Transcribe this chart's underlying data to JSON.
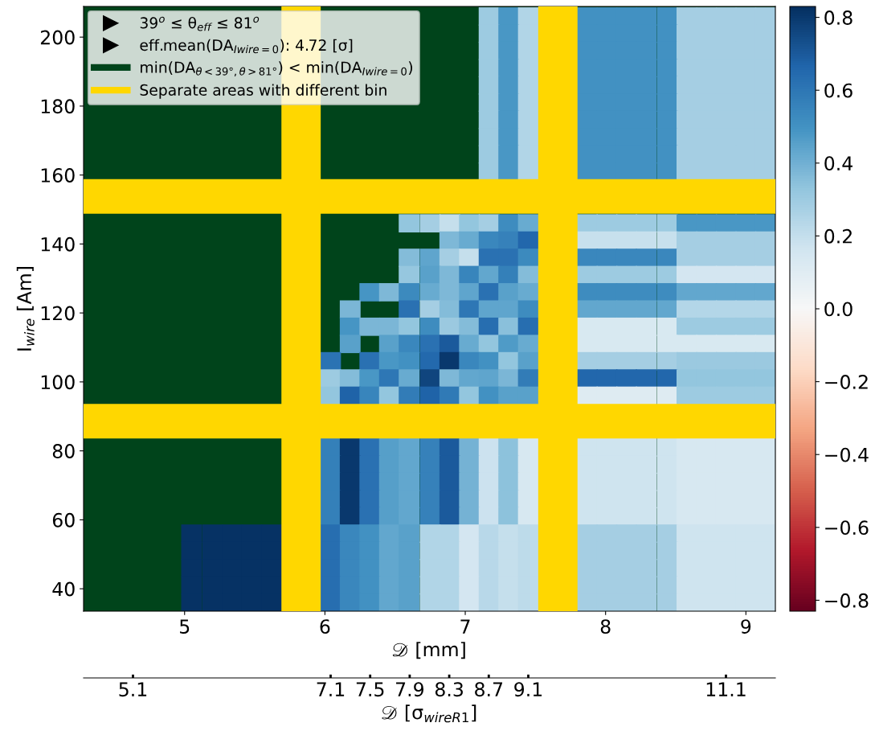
{
  "chart_data": {
    "type": "scatter",
    "marker": "square",
    "xlabel": "𝒟 [mm]",
    "ylabel": "I$_{wire}$ [Am]",
    "x2label": "𝒟 [σ$_{wireR1}$]",
    "xlim": [
      4.28,
      9.21
    ],
    "xticks": [
      5,
      6,
      7,
      8,
      9
    ],
    "ylim": [
      33.5,
      208.9
    ],
    "yticks": [
      40,
      60,
      80,
      100,
      120,
      140,
      160,
      180,
      200
    ],
    "x2lim": [
      4.6,
      11.6
    ],
    "x2ticks": [
      5.1,
      7.1,
      7.5,
      7.9,
      8.3,
      8.7,
      9.1,
      11.1
    ],
    "clim": [
      -0.83,
      0.83
    ],
    "cticks": [
      {
        "value": -0.8,
        "label": "−0.8"
      },
      {
        "value": -0.6,
        "label": "−0.6"
      },
      {
        "value": -0.4,
        "label": "−0.4"
      },
      {
        "value": -0.2,
        "label": "−0.2"
      },
      {
        "value": 0,
        "label": "0.0"
      },
      0.2,
      0.4,
      0.6,
      0.8
    ],
    "x": [
      7.17,
      7.31,
      7.45,
      7.87,
      8.01,
      8.15,
      8.29,
      8.44,
      8.58,
      8.72,
      8.86,
      9.0,
      9.14,
      7.17,
      7.31,
      7.45,
      7.87,
      8.01,
      8.15,
      8.29,
      8.44,
      8.58,
      8.72,
      8.86,
      9.0,
      9.14,
      7.17,
      7.31,
      7.45,
      7.87,
      8.01,
      8.15,
      8.29,
      8.44,
      8.58,
      8.72,
      8.86,
      9.0,
      9.14,
      7.17,
      7.31,
      7.45,
      7.87,
      8.01,
      8.15,
      8.29,
      8.44,
      8.58,
      8.72,
      8.86,
      9.0,
      9.14,
      7.17,
      7.31,
      7.45,
      7.87,
      8.01,
      8.15,
      8.29,
      8.44,
      8.58,
      8.72,
      8.86,
      9.0,
      9.14,
      7.17,
      7.31,
      7.45,
      7.87,
      8.01,
      8.15,
      8.29,
      8.44,
      8.58,
      8.72,
      8.86,
      9.0,
      9.14,
      7.17,
      7.31,
      7.45,
      7.87,
      8.01,
      8.15,
      8.29,
      8.44,
      8.58,
      8.72,
      8.86,
      9.0,
      9.14,
      7.17,
      7.31,
      7.45,
      7.87,
      8.01,
      8.15,
      8.29,
      8.44,
      8.58,
      8.72,
      8.86,
      9.0,
      9.14,
      7.17,
      7.31,
      7.45,
      7.87,
      8.01,
      8.15,
      8.29,
      8.44,
      8.58,
      8.72,
      8.86,
      9.0,
      9.14,
      7.17,
      7.31,
      7.45,
      7.87,
      8.01,
      8.15,
      8.29,
      8.44,
      8.58,
      8.72,
      8.86,
      9.0,
      9.14,
      6.6,
      6.75,
      6.89,
      7.03,
      7.17,
      7.31,
      7.45,
      7.87,
      8.01,
      8.15,
      8.29,
      8.44,
      8.58,
      8.72,
      8.86,
      9.0,
      9.14,
      6.89,
      7.03,
      7.17,
      7.31,
      7.45,
      7.87,
      8.01,
      8.15,
      8.29,
      8.44,
      8.58,
      8.72,
      8.86,
      9.0,
      9.14,
      6.6,
      6.75,
      6.89,
      7.03,
      7.17,
      7.31,
      7.45,
      7.87,
      8.01,
      8.15,
      8.29,
      8.44,
      8.58,
      8.72,
      8.86,
      9.0,
      9.14,
      6.6,
      6.75,
      6.89,
      7.03,
      7.17,
      7.31,
      7.45,
      7.87,
      8.01,
      8.15,
      8.29,
      8.44,
      8.58,
      8.72,
      8.86,
      9.0,
      9.14,
      6.32,
      6.46,
      6.6,
      6.75,
      6.89,
      7.03,
      7.17,
      7.31,
      7.45,
      7.87,
      8.01,
      8.15,
      8.29,
      8.44,
      8.58,
      8.72,
      8.86,
      9.0,
      9.14,
      6.18,
      6.6,
      6.75,
      6.89,
      7.03,
      7.17,
      7.31,
      7.45,
      7.87,
      8.01,
      8.15,
      8.29,
      8.44,
      8.58,
      8.72,
      8.86,
      9.0,
      9.14,
      6.18,
      6.32,
      6.46,
      6.6,
      6.75,
      6.89,
      7.03,
      7.17,
      7.31,
      7.45,
      7.87,
      8.01,
      8.15,
      8.29,
      8.44,
      8.58,
      8.72,
      8.86,
      9.0,
      9.14,
      6.18,
      6.46,
      6.6,
      6.75,
      6.89,
      7.03,
      7.17,
      7.31,
      7.45,
      7.87,
      8.01,
      8.15,
      8.29,
      8.44,
      8.58,
      8.72,
      8.86,
      9.0,
      9.14,
      6.04,
      6.32,
      6.46,
      6.6,
      6.75,
      6.89,
      7.03,
      7.17,
      7.31,
      7.45,
      7.87,
      8.01,
      8.15,
      8.29,
      8.44,
      8.58,
      8.72,
      8.86,
      9.0,
      9.14,
      6.04,
      6.18,
      6.32,
      6.46,
      6.6,
      6.75,
      6.89,
      7.03,
      7.17,
      7.31,
      7.45,
      7.87,
      8.01,
      8.15,
      8.29,
      8.44,
      8.58,
      8.72,
      8.86,
      9.0,
      9.14,
      6.04,
      6.18,
      6.32,
      6.46,
      6.6,
      6.75,
      6.89,
      7.03,
      7.17,
      7.31,
      7.45,
      7.87,
      8.01,
      8.15,
      8.29,
      8.44,
      8.58,
      8.72,
      8.86,
      9.0,
      9.14,
      6.04,
      6.18,
      6.32,
      6.46,
      6.6,
      6.75,
      6.89,
      7.03,
      7.17,
      7.31,
      7.45,
      7.87,
      8.01,
      8.15,
      8.29,
      8.44,
      8.58,
      8.72,
      8.86,
      9.0,
      9.14,
      6.04,
      6.18,
      6.32,
      6.46,
      6.6,
      6.75,
      6.89,
      7.03,
      7.17,
      7.31,
      7.45,
      7.87,
      8.01,
      8.15,
      8.29,
      8.44,
      8.58,
      8.72,
      8.86,
      9.0,
      9.14,
      6.04,
      6.18,
      6.32,
      6.46,
      6.6,
      6.75,
      6.89,
      7.03,
      7.17,
      7.31,
      7.45,
      7.87,
      8.01,
      8.15,
      8.29,
      8.44,
      8.58,
      8.72,
      8.86,
      9.0,
      9.14,
      6.04,
      6.18,
      6.32,
      6.46,
      6.6,
      6.75,
      6.89,
      7.03,
      7.17,
      7.31,
      7.45,
      7.87,
      8.01,
      8.15,
      8.29,
      8.44,
      8.58,
      8.72,
      8.86,
      9.0,
      9.14,
      6.04,
      6.18,
      6.32,
      6.46,
      6.6,
      6.75,
      6.89,
      7.03,
      7.17,
      7.31,
      7.45,
      7.87,
      8.01,
      8.15,
      8.29,
      8.44,
      8.58,
      8.72,
      8.86,
      9.0,
      9.14,
      5.05,
      5.2,
      5.34,
      5.48,
      5.62,
      6.04,
      6.18,
      6.32,
      6.46,
      6.6,
      6.75,
      6.89,
      7.03,
      7.17,
      7.31,
      7.45,
      7.87,
      8.01,
      8.15,
      8.29,
      8.44,
      8.58,
      8.72,
      8.86,
      9.0,
      9.14,
      5.05,
      5.2,
      5.34,
      5.48,
      5.62,
      6.04,
      6.18,
      6.32,
      6.46,
      6.6,
      6.75,
      6.89,
      7.03,
      7.17,
      7.31,
      7.45,
      7.87,
      8.01,
      8.15,
      8.29,
      8.44,
      8.58,
      8.72,
      8.86,
      9.0,
      9.14,
      5.05,
      5.2,
      5.34,
      5.48,
      5.62,
      6.04,
      6.18,
      6.32,
      6.46,
      6.6,
      6.75,
      6.89,
      7.03,
      7.17,
      7.31,
      7.45,
      7.87,
      8.01,
      8.15,
      8.29,
      8.44,
      8.58,
      8.72,
      8.86,
      9.0,
      9.14,
      5.05,
      5.2,
      5.34,
      5.48,
      5.62,
      6.04,
      6.18,
      6.32,
      6.46,
      6.6,
      6.75,
      6.89,
      7.03,
      7.17,
      7.31,
      7.45,
      7.87,
      8.01,
      8.15,
      8.29,
      8.44,
      8.58,
      8.72,
      8.86,
      9.0,
      9.14,
      5.05,
      5.2,
      5.34,
      5.48,
      5.62,
      6.04,
      6.18,
      6.32,
      6.46,
      6.6,
      6.75,
      6.89,
      7.03,
      7.17,
      7.31,
      7.45,
      7.87,
      8.01,
      8.15,
      8.29,
      8.44,
      8.58,
      8.72,
      8.86,
      9.0,
      9.14
    ],
    "values": [
      206,
      206,
      206,
      206,
      206,
      206,
      206,
      206,
      206,
      206,
      206,
      206,
      206,
      201,
      201,
      201,
      201,
      201,
      201,
      201,
      201,
      201,
      201,
      201,
      201,
      201,
      196,
      196,
      196,
      196,
      196,
      196,
      196,
      196,
      196,
      196,
      196,
      196,
      196,
      191,
      191,
      191,
      191,
      191,
      191,
      191,
      191,
      191,
      191,
      191,
      191,
      191,
      186,
      186,
      186,
      186,
      186,
      186,
      186,
      186,
      186,
      186,
      186,
      186,
      186,
      181,
      181,
      181,
      181,
      181,
      181,
      181,
      181,
      181,
      181,
      181,
      181,
      181,
      176,
      176,
      176,
      176,
      176,
      176,
      176,
      176,
      176,
      176,
      176,
      176,
      176,
      171,
      171,
      171,
      171,
      171,
      171,
      171,
      171,
      171,
      171,
      171,
      171,
      171,
      166,
      166,
      166,
      166,
      166,
      166,
      166,
      166,
      166,
      166,
      166,
      166,
      166,
      161,
      161,
      161,
      161,
      161,
      161,
      161,
      161,
      161,
      161,
      161,
      161,
      161,
      146,
      146,
      146,
      146,
      146,
      146,
      146,
      146,
      146,
      146,
      146,
      146,
      146,
      146,
      146,
      146,
      146,
      141,
      141,
      141,
      141,
      141,
      141,
      141,
      141,
      141,
      141,
      141,
      141,
      141,
      141,
      141,
      136,
      136,
      136,
      136,
      136,
      136,
      136,
      136,
      136,
      136,
      136,
      136,
      136,
      136,
      136,
      136,
      136,
      131,
      131,
      131,
      131,
      131,
      131,
      131,
      131,
      131,
      131,
      131,
      131,
      131,
      131,
      131,
      131,
      131,
      126,
      126,
      126,
      126,
      126,
      126,
      126,
      126,
      126,
      126,
      126,
      126,
      126,
      126,
      126,
      126,
      126,
      126,
      126,
      121,
      121,
      121,
      121,
      121,
      121,
      121,
      121,
      121,
      121,
      121,
      121,
      121,
      121,
      121,
      121,
      121,
      121,
      116,
      116,
      116,
      116,
      116,
      116,
      116,
      116,
      116,
      116,
      116,
      116,
      116,
      116,
      116,
      116,
      116,
      116,
      116,
      116,
      111,
      111,
      111,
      111,
      111,
      111,
      111,
      111,
      111,
      111,
      111,
      111,
      111,
      111,
      111,
      111,
      111,
      111,
      111,
      106,
      106,
      106,
      106,
      106,
      106,
      106,
      106,
      106,
      106,
      106,
      106,
      106,
      106,
      106,
      106,
      106,
      106,
      106,
      106,
      101,
      101,
      101,
      101,
      101,
      101,
      101,
      101,
      101,
      101,
      101,
      101,
      101,
      101,
      101,
      101,
      101,
      101,
      101,
      101,
      101,
      96,
      96,
      96,
      96,
      96,
      96,
      96,
      96,
      96,
      96,
      96,
      96,
      96,
      96,
      96,
      96,
      96,
      96,
      96,
      96,
      96,
      81,
      81,
      81,
      81,
      81,
      81,
      81,
      81,
      81,
      81,
      81,
      81,
      81,
      81,
      81,
      81,
      81,
      81,
      81,
      81,
      81,
      76,
      76,
      76,
      76,
      76,
      76,
      76,
      76,
      76,
      76,
      76,
      76,
      76,
      76,
      76,
      76,
      76,
      76,
      76,
      76,
      76,
      71,
      71,
      71,
      71,
      71,
      71,
      71,
      71,
      71,
      71,
      71,
      71,
      71,
      71,
      71,
      71,
      71,
      71,
      71,
      71,
      71,
      66,
      66,
      66,
      66,
      66,
      66,
      66,
      66,
      66,
      66,
      66,
      66,
      66,
      66,
      66,
      66,
      66,
      66,
      66,
      66,
      66,
      61,
      61,
      61,
      61,
      61,
      61,
      61,
      61,
      61,
      61,
      61,
      61,
      61,
      61,
      61,
      61,
      61,
      61,
      61,
      61,
      61,
      56,
      56,
      56,
      56,
      56,
      56,
      56,
      56,
      56,
      56,
      56,
      56,
      56,
      56,
      56,
      56,
      56,
      56,
      56,
      56,
      56,
      56,
      56,
      56,
      56,
      56,
      51,
      51,
      51,
      51,
      51,
      51,
      51,
      51,
      51,
      51,
      51,
      51,
      51,
      51,
      51,
      51,
      51,
      51,
      51,
      51,
      51,
      51,
      51,
      51,
      51,
      51,
      46,
      46,
      46,
      46,
      46,
      46,
      46,
      46,
      46,
      46,
      46,
      46,
      46,
      46,
      46,
      46,
      46,
      46,
      46,
      46,
      46,
      46,
      46,
      46,
      46,
      46,
      41,
      41,
      41,
      41,
      41,
      41,
      41,
      41,
      41,
      41,
      41,
      41,
      41,
      41,
      41,
      41,
      41,
      41,
      41,
      41,
      41,
      41,
      41,
      41,
      41,
      41,
      36,
      36,
      36,
      36,
      36,
      36,
      36,
      36,
      36,
      36,
      36,
      36,
      36,
      36,
      36,
      36,
      36,
      36,
      36,
      36,
      36,
      36,
      36,
      36,
      36,
      36
    ],
    "cvalues": [
      0.3,
      0.48,
      0.25,
      0.5,
      0.5,
      0.5,
      0.5,
      0.5,
      0.28,
      0.28,
      0.28,
      0.28,
      0.28,
      0.3,
      0.48,
      0.25,
      0.5,
      0.5,
      0.5,
      0.5,
      0.5,
      0.28,
      0.28,
      0.28,
      0.28,
      0.28,
      0.3,
      0.48,
      0.25,
      0.5,
      0.5,
      0.5,
      0.5,
      0.5,
      0.28,
      0.28,
      0.28,
      0.28,
      0.28,
      0.3,
      0.48,
      0.25,
      0.5,
      0.5,
      0.5,
      0.5,
      0.5,
      0.28,
      0.28,
      0.28,
      0.28,
      0.28,
      0.3,
      0.48,
      0.25,
      0.5,
      0.5,
      0.5,
      0.5,
      0.5,
      0.28,
      0.28,
      0.28,
      0.28,
      0.28,
      0.3,
      0.48,
      0.25,
      0.5,
      0.5,
      0.5,
      0.5,
      0.5,
      0.28,
      0.28,
      0.28,
      0.28,
      0.28,
      0.3,
      0.48,
      0.25,
      0.5,
      0.5,
      0.5,
      0.5,
      0.5,
      0.28,
      0.28,
      0.28,
      0.28,
      0.28,
      0.3,
      0.48,
      0.25,
      0.5,
      0.5,
      0.5,
      0.5,
      0.5,
      0.28,
      0.28,
      0.28,
      0.28,
      0.28,
      0.3,
      0.48,
      0.25,
      0.5,
      0.5,
      0.5,
      0.5,
      0.5,
      0.28,
      0.28,
      0.28,
      0.28,
      0.28,
      0.3,
      0.48,
      0.25,
      0.5,
      0.5,
      0.5,
      0.5,
      0.5,
      0.28,
      0.28,
      0.28,
      0.28,
      0.28,
      0.33,
      0.28,
      0.2,
      0.33,
      0.28,
      0.52,
      0.42,
      0.3,
      0.3,
      0.3,
      0.3,
      0.3,
      0.48,
      0.48,
      0.48,
      0.48,
      0.48,
      0.37,
      0.42,
      0.54,
      0.56,
      0.66,
      0.19,
      0.19,
      0.19,
      0.19,
      0.19,
      0.28,
      0.28,
      0.28,
      0.28,
      0.28,
      0.36,
      0.44,
      0.28,
      0.2,
      0.62,
      0.62,
      0.53,
      0.54,
      0.54,
      0.54,
      0.54,
      0.54,
      0.28,
      0.28,
      0.28,
      0.28,
      0.28,
      0.32,
      0.45,
      0.37,
      0.55,
      0.43,
      0.57,
      0.36,
      0.3,
      0.3,
      0.3,
      0.3,
      0.3,
      0.15,
      0.15,
      0.15,
      0.15,
      0.15,
      0.49,
      0.37,
      0.53,
      0.42,
      0.37,
      0.44,
      0.62,
      0.45,
      0.42,
      0.52,
      0.52,
      0.52,
      0.52,
      0.52,
      0.43,
      0.43,
      0.43,
      0.43,
      0.43,
      0.38,
      0.62,
      0.28,
      0.36,
      0.6,
      0.44,
      0.44,
      0.52,
      0.43,
      0.43,
      0.43,
      0.43,
      0.43,
      0.24,
      0.24,
      0.24,
      0.24,
      0.24,
      0.49,
      0.38,
      0.38,
      0.33,
      0.52,
      0.31,
      0.36,
      0.63,
      0.35,
      0.63,
      0.13,
      0.13,
      0.13,
      0.13,
      0.13,
      0.3,
      0.3,
      0.3,
      0.3,
      0.3,
      0.45,
      0.45,
      0.54,
      0.62,
      0.7,
      0.42,
      0.33,
      0.47,
      0.42,
      0.13,
      0.13,
      0.13,
      0.13,
      0.13,
      0.13,
      0.13,
      0.13,
      0.13,
      0.13,
      0.61,
      0.62,
      0.48,
      0.5,
      0.65,
      0.8,
      0.54,
      0.5,
      0.33,
      0.45,
      0.28,
      0.28,
      0.28,
      0.28,
      0.28,
      0.31,
      0.31,
      0.31,
      0.31,
      0.31,
      0.3,
      0.36,
      0.48,
      0.6,
      0.42,
      0.76,
      0.37,
      0.43,
      0.44,
      0.38,
      0.58,
      0.66,
      0.66,
      0.66,
      0.66,
      0.66,
      0.33,
      0.33,
      0.33,
      0.33,
      0.33,
      0.33,
      0.67,
      0.55,
      0.33,
      0.58,
      0.67,
      0.59,
      0.33,
      0.5,
      0.45,
      0.45,
      0.11,
      0.11,
      0.11,
      0.11,
      0.11,
      0.3,
      0.3,
      0.3,
      0.3,
      0.3,
      0.57,
      0.8,
      0.62,
      0.46,
      0.43,
      0.56,
      0.7,
      0.39,
      0.18,
      0.34,
      0.14,
      0.17,
      0.17,
      0.17,
      0.17,
      0.17,
      0.14,
      0.14,
      0.14,
      0.14,
      0.14,
      0.57,
      0.8,
      0.62,
      0.46,
      0.43,
      0.56,
      0.7,
      0.39,
      0.18,
      0.34,
      0.14,
      0.17,
      0.17,
      0.17,
      0.17,
      0.17,
      0.14,
      0.14,
      0.14,
      0.14,
      0.14,
      0.57,
      0.8,
      0.62,
      0.46,
      0.43,
      0.56,
      0.7,
      0.39,
      0.18,
      0.34,
      0.14,
      0.17,
      0.17,
      0.17,
      0.17,
      0.17,
      0.14,
      0.14,
      0.14,
      0.14,
      0.14,
      0.57,
      0.8,
      0.62,
      0.46,
      0.43,
      0.56,
      0.7,
      0.39,
      0.18,
      0.34,
      0.14,
      0.17,
      0.17,
      0.17,
      0.17,
      0.17,
      0.14,
      0.14,
      0.14,
      0.14,
      0.14,
      0.57,
      0.8,
      0.62,
      0.46,
      0.43,
      0.56,
      0.7,
      0.39,
      0.18,
      0.34,
      0.14,
      0.17,
      0.17,
      0.17,
      0.17,
      0.17,
      0.14,
      0.14,
      0.14,
      0.14,
      0.14,
      0.82,
      0.82,
      0.82,
      0.82,
      0.82,
      0.63,
      0.54,
      0.5,
      0.43,
      0.45,
      0.25,
      0.25,
      0.15,
      0.23,
      0.2,
      0.22,
      0.28,
      0.28,
      0.28,
      0.28,
      0.28,
      0.17,
      0.17,
      0.17,
      0.17,
      0.17,
      0.82,
      0.82,
      0.82,
      0.82,
      0.82,
      0.63,
      0.54,
      0.5,
      0.43,
      0.45,
      0.25,
      0.25,
      0.15,
      0.23,
      0.2,
      0.22,
      0.28,
      0.28,
      0.28,
      0.28,
      0.28,
      0.17,
      0.17,
      0.17,
      0.17,
      0.17,
      0.82,
      0.82,
      0.82,
      0.82,
      0.82,
      0.63,
      0.54,
      0.5,
      0.43,
      0.45,
      0.25,
      0.25,
      0.15,
      0.23,
      0.2,
      0.22,
      0.28,
      0.28,
      0.28,
      0.28,
      0.28,
      0.17,
      0.17,
      0.17,
      0.17,
      0.17,
      0.82,
      0.82,
      0.82,
      0.82,
      0.82,
      0.63,
      0.54,
      0.5,
      0.43,
      0.45,
      0.25,
      0.25,
      0.15,
      0.23,
      0.2,
      0.22,
      0.28,
      0.28,
      0.28,
      0.28,
      0.28,
      0.17,
      0.17,
      0.17,
      0.17,
      0.17,
      0.82,
      0.82,
      0.82,
      0.82,
      0.82,
      0.63,
      0.54,
      0.5,
      0.43,
      0.45,
      0.25,
      0.25,
      0.15,
      0.23,
      0.2,
      0.22,
      0.28,
      0.28,
      0.28,
      0.28,
      0.28,
      0.17,
      0.17,
      0.17,
      0.17,
      0.17
    ],
    "annotations": [
      "39$^{o}$ ≤ θ$_{eff}$ ≤ 81$^{o}$",
      "eff.mean(DA$_{Iwire=0}$): 4.72 [σ]"
    ],
    "bands": [
      {
        "axis": "x",
        "from": 4.28,
        "to": 9.21,
        "color": "#00441b",
        "label": "min(DA$_{θ<39°,θ>81°}$) < min(DA$_{Iwire=0}$)"
      },
      {
        "axis": "x",
        "from": 5.69,
        "to": 5.97,
        "color": "#ffd700",
        "label": "Separate areas with different bin"
      },
      {
        "axis": "x",
        "from": 7.52,
        "to": 7.8,
        "color": "#ffd700"
      },
      {
        "axis": "y",
        "from": 83.6,
        "to": 93.6,
        "color": "#ffd700"
      },
      {
        "axis": "y",
        "from": 148.8,
        "to": 158.8,
        "color": "#ffd700"
      }
    ],
    "legend": "top left"
  }
}
